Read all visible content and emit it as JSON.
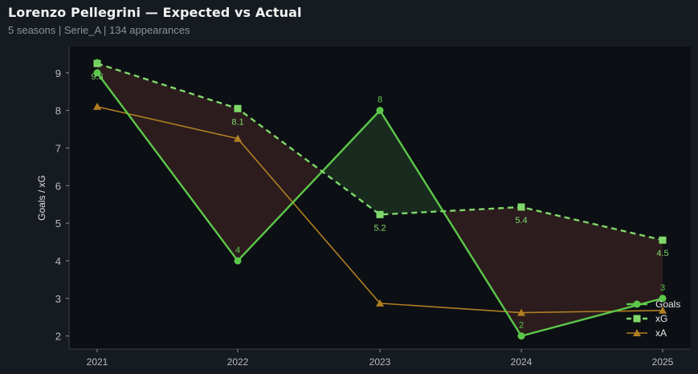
{
  "header": {
    "title": "Lorenzo Pellegrini — Expected vs Actual",
    "subtitle": "5 seasons | Serie_A | 134 appearances"
  },
  "colors": {
    "background": "#161a21",
    "plot_background": "#0c0f14",
    "goals": "#5cc84a",
    "xg": "#7fd86a",
    "xa": "#b07f22",
    "fill_over": "#2e1d1f",
    "fill_under": "#1a2d20"
  },
  "chart_data": {
    "type": "line",
    "title": "Lorenzo Pellegrini — Expected vs Actual",
    "subtitle": "5 seasons | Serie_A | 134 appearances",
    "xlabel": "",
    "ylabel": "Goals / xG",
    "categories": [
      "2021",
      "2022",
      "2023",
      "2024",
      "2025"
    ],
    "ylim": [
      1.65,
      9.7
    ],
    "yticks": [
      2,
      3,
      4,
      5,
      6,
      7,
      8,
      9
    ],
    "grid": false,
    "legend_position": "bottom-right",
    "series": [
      {
        "name": "Goals",
        "marker": "circle",
        "style": "solid",
        "values": [
          9,
          4,
          8,
          2,
          3
        ],
        "labels": [
          "9",
          "4",
          "8",
          "2",
          "3"
        ]
      },
      {
        "name": "xG",
        "marker": "square",
        "style": "dashed",
        "values": [
          9.25,
          8.05,
          5.23,
          5.43,
          4.55
        ],
        "labels": [
          "9.3",
          "8.1",
          "5.2",
          "5.4",
          "4.5"
        ]
      },
      {
        "name": "xA",
        "marker": "triangle",
        "style": "solid",
        "values": [
          8.1,
          7.25,
          2.87,
          2.62,
          2.68
        ]
      }
    ]
  }
}
